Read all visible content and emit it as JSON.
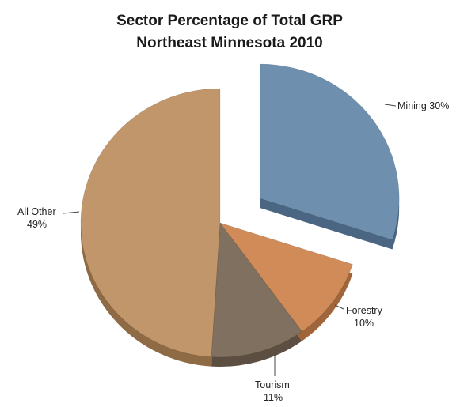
{
  "chart_data": {
    "type": "pie",
    "title": "Sector Percentage of Total GRP",
    "subtitle": "Northeast Minnesota 2010",
    "slices": [
      {
        "name": "Mining",
        "value": 30,
        "label": "Mining 30%",
        "color": "#6f8fae",
        "side": "#4a6682",
        "exploded": true
      },
      {
        "name": "Forestry",
        "value": 10,
        "label_name": "Forestry",
        "label_value": "10%",
        "color": "#d08b58",
        "side": "#a0653a",
        "exploded": false
      },
      {
        "name": "Tourism",
        "value": 11,
        "label_name": "Tourism",
        "label_value": "11%",
        "color": "#80705f",
        "side": "#5c4f42",
        "exploded": false
      },
      {
        "name": "All Other",
        "value": 49,
        "label_name": "All Other",
        "label_value": "49%",
        "color": "#c0966a",
        "side": "#8e6a45",
        "exploded": false
      }
    ],
    "legend": "none",
    "data_labels": "outside"
  }
}
